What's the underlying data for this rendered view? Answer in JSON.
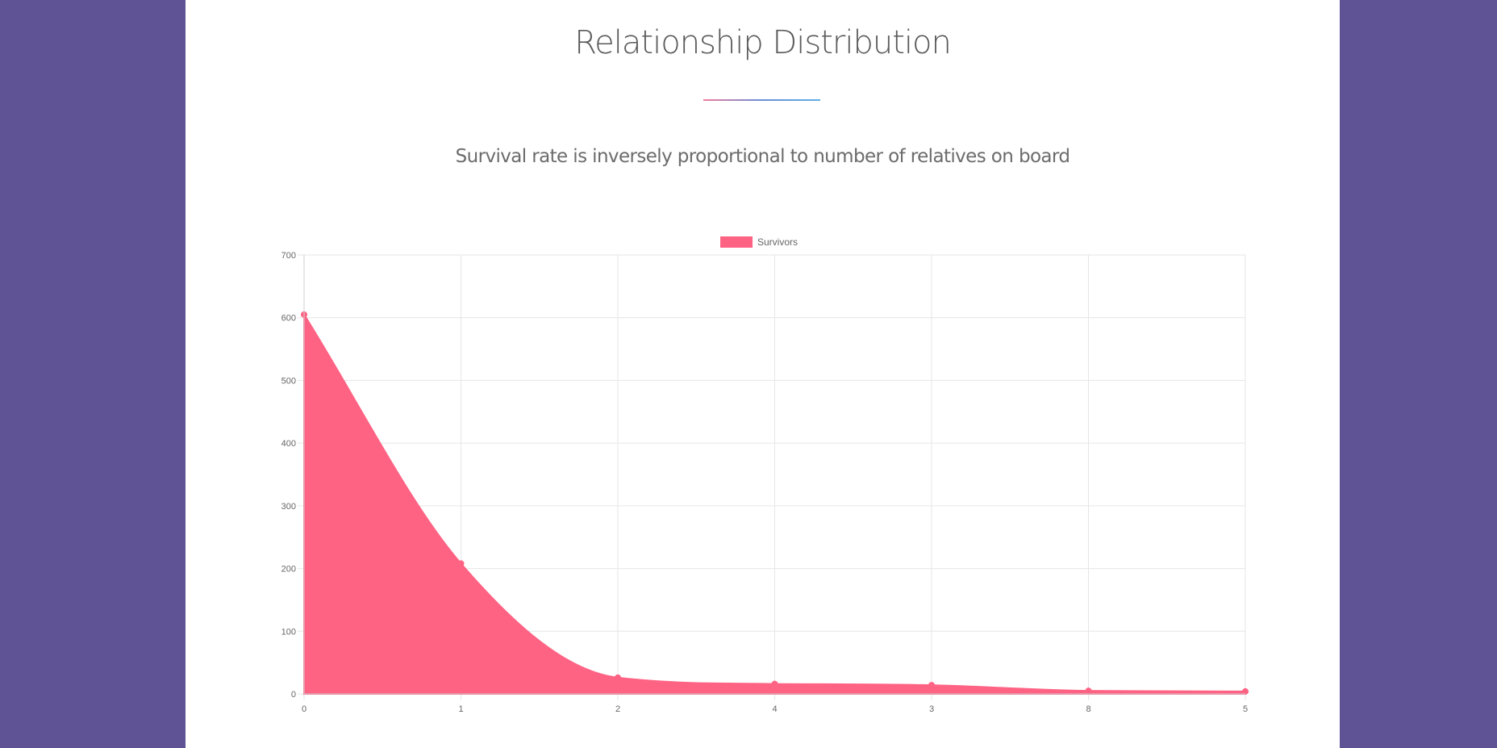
{
  "section": {
    "title": "Relationship Distribution",
    "subtitle": "Survival rate is inversely proportional to number of relatives on board"
  },
  "colors": {
    "background": "#5f5396",
    "panel": "#ffffff",
    "series_fill": "#ff6384",
    "grid": "#e6e6e6",
    "tick_text": "#666666"
  },
  "chart_data": {
    "type": "area",
    "title": "",
    "xlabel": "",
    "ylabel": "",
    "categories": [
      "0",
      "1",
      "2",
      "4",
      "3",
      "8",
      "5"
    ],
    "series": [
      {
        "name": "Survivors",
        "values": [
          605,
          208,
          26,
          16,
          14,
          5,
          4
        ]
      }
    ],
    "ylim": [
      0,
      700
    ],
    "yticks": [
      "0",
      "100",
      "200",
      "300",
      "400",
      "500",
      "600",
      "700"
    ],
    "grid": true,
    "legend": "top-center"
  }
}
